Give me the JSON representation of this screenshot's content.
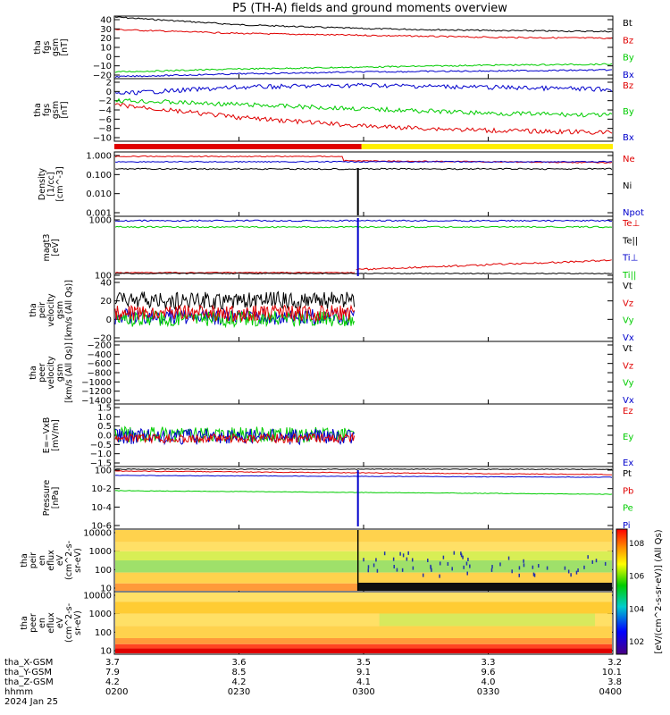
{
  "title": "P5 (TH-A) fields and ground moments overview",
  "colors": {
    "black": "#000000",
    "red": "#e00000",
    "green": "#00cc00",
    "blue": "#0000cc",
    "yellow": "#ffee00",
    "cyan": "#00cccc"
  },
  "chart_data": [
    {
      "type": "line",
      "ylabel": [
        "tha",
        "fgs",
        "gsm",
        "[nT]"
      ],
      "yticks": [
        "40",
        "30",
        "20",
        "10",
        "0",
        "−10",
        "−20"
      ],
      "ylim": [
        -23,
        42
      ],
      "series": [
        {
          "name": "Bt",
          "color": "red-black",
          "x": [
            0.0,
            0.25,
            0.5,
            0.75,
            1.0
          ],
          "y": [
            41,
            33,
            29,
            27,
            26
          ]
        },
        {
          "name": "Bz",
          "color": "red",
          "x": [
            0.0,
            0.25,
            0.5,
            0.75,
            1.0
          ],
          "y": [
            28,
            24,
            22,
            20,
            19
          ]
        },
        {
          "name": "By",
          "color": "green",
          "x": [
            0.0,
            0.25,
            0.5,
            0.75,
            1.0
          ],
          "y": [
            -16,
            -13,
            -11,
            -9,
            -8
          ]
        },
        {
          "name": "Bx",
          "color": "blue",
          "x": [
            0.0,
            0.25,
            0.5,
            0.75,
            1.0
          ],
          "y": [
            -21,
            -18,
            -16,
            -15,
            -14
          ]
        }
      ]
    },
    {
      "type": "line",
      "ylabel": [
        "tha",
        "fgs",
        "gsm",
        "[nT]"
      ],
      "yticks": [
        "2",
        "0",
        "−2",
        "−4",
        "−6",
        "−8",
        "−10"
      ],
      "ylim": [
        -11.5,
        3
      ],
      "series": [
        {
          "name": "Bz",
          "color": "blue",
          "x": [
            0.0,
            0.25,
            0.5,
            0.75,
            1.0
          ],
          "y": [
            -0.5,
            1.0,
            1.5,
            1.0,
            0.5
          ]
        },
        {
          "name": "By",
          "color": "green",
          "x": [
            0.0,
            0.25,
            0.5,
            0.75,
            1.0
          ],
          "y": [
            -2,
            -3,
            -4,
            -5,
            -5.5
          ]
        },
        {
          "name": "Bx",
          "color": "blue",
          "x": [
            0.0,
            0.25,
            0.5,
            0.75,
            1.0
          ],
          "y": [
            -3,
            -6,
            -8,
            -9,
            -9.5
          ]
        }
      ]
    },
    {
      "type": "line",
      "ylabel": [
        "Density",
        "[1/cc]",
        "[cm^-3]"
      ],
      "yticks": [
        "1.000",
        "0.100",
        "0.010",
        "0.001"
      ],
      "ylim": [
        0.0005,
        3
      ],
      "yscale": "log",
      "series": [
        {
          "name": "Ne",
          "color": "red"
        },
        {
          "name": "Ni",
          "color": "black"
        },
        {
          "name": "Npot",
          "color": "blue"
        }
      ]
    },
    {
      "type": "line",
      "ylabel": [
        "magt3",
        "[eV]"
      ],
      "yticks": [
        "1000",
        "100"
      ],
      "yscale": "log",
      "series": [
        {
          "name": "Te⊥",
          "color": "red"
        },
        {
          "name": "Te||",
          "color": "black"
        },
        {
          "name": "Ti⊥",
          "color": "blue"
        },
        {
          "name": "Ti||",
          "color": "green"
        }
      ]
    },
    {
      "type": "line",
      "ylabel": [
        "tha",
        "peir",
        "velocity",
        "gsm",
        "[km/s (All Qs)]"
      ],
      "yticks": [
        "40",
        "20",
        "0",
        "−20"
      ],
      "series": [
        {
          "name": "Vt",
          "color": "black"
        },
        {
          "name": "Vz",
          "color": "red"
        },
        {
          "name": "Vy",
          "color": "green"
        },
        {
          "name": "Vx",
          "color": "blue"
        }
      ]
    },
    {
      "type": "line",
      "ylabel": [
        "tha",
        "peer",
        "velocity",
        "gsm",
        "[km/s (All Qs)]"
      ],
      "yticks": [
        "−200",
        "−400",
        "−600",
        "−800",
        "−1000",
        "−1200",
        "−1400"
      ],
      "series": [
        {
          "name": "Vt",
          "color": "black"
        },
        {
          "name": "Vz",
          "color": "red"
        },
        {
          "name": "Vy",
          "color": "green"
        },
        {
          "name": "Vx",
          "color": "blue"
        }
      ]
    },
    {
      "type": "line",
      "ylabel": [
        "E=−VxB",
        "[mV/m]"
      ],
      "yticks": [
        "1.5",
        "1.0",
        "0.5",
        "0.0",
        "−0.5",
        "−1.0",
        "−1.5"
      ],
      "series": [
        {
          "name": "Ez",
          "color": "red"
        },
        {
          "name": "Ey",
          "color": "green"
        },
        {
          "name": "Ex",
          "color": "blue"
        }
      ]
    },
    {
      "type": "line",
      "ylabel": [
        "Pressure",
        "[nPa]"
      ],
      "yticks": [
        "10^0",
        "10^-2",
        "10^-4",
        "10^-6"
      ],
      "yscale": "log",
      "series": [
        {
          "name": "Pt",
          "color": "black"
        },
        {
          "name": "Pb",
          "color": "red"
        },
        {
          "name": "Pe",
          "color": "green"
        },
        {
          "name": "Pi",
          "color": "blue"
        }
      ]
    },
    {
      "type": "heatmap",
      "ylabel": [
        "tha",
        "peir",
        "en",
        "eflux",
        "eV",
        "(cm^2-s-",
        "sr-eV)"
      ],
      "yticks": [
        "10000",
        "1000",
        "100",
        "10"
      ],
      "yscale": "log"
    },
    {
      "type": "heatmap",
      "ylabel": [
        "tha",
        "peer",
        "en",
        "eflux",
        "eV",
        "(cm^2-s-",
        "sr-eV)"
      ],
      "yticks": [
        "10000",
        "1000",
        "100",
        "10"
      ],
      "yscale": "log"
    }
  ],
  "colorbar": {
    "ticks": [
      "10^8",
      "10^6",
      "10^4",
      "10^2"
    ],
    "label": "[eV/(cm^2-s-sr-eV)] (All Qs)"
  },
  "x_axis": {
    "row_labels": [
      "tha_X-GSM",
      "tha_Y-GSM",
      "tha_Z-GSM",
      "hhmm",
      "2024 Jan 25"
    ],
    "columns": [
      {
        "x": "3.7",
        "y": "7.9",
        "z": "4.2",
        "time": "0200"
      },
      {
        "x": "3.6",
        "y": "8.5",
        "z": "4.2",
        "time": "0230"
      },
      {
        "x": "3.5",
        "y": "9.1",
        "z": "4.1",
        "time": "0300"
      },
      {
        "x": "3.3",
        "y": "9.6",
        "z": "4.0",
        "time": "0330"
      },
      {
        "x": "3.2",
        "y": "10.1",
        "z": "3.8",
        "time": "0400"
      }
    ]
  }
}
